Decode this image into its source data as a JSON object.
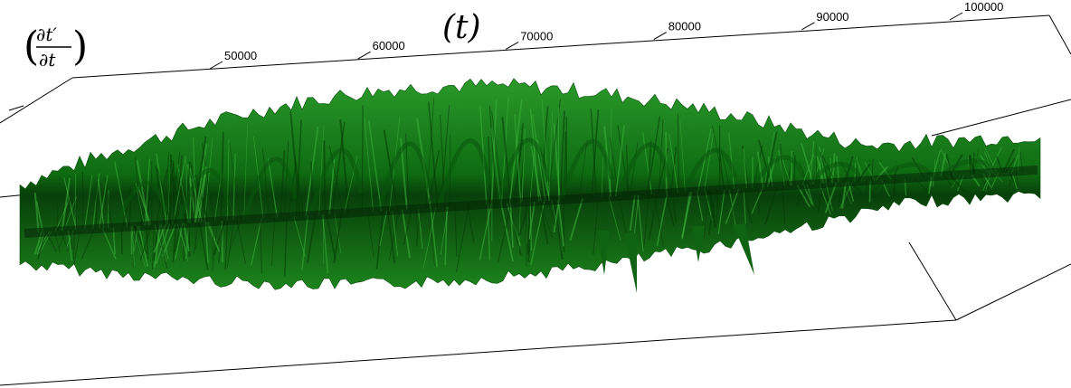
{
  "chart_data": {
    "type": "surface-3d",
    "x_axis": {
      "label": "(t)",
      "ticks": [
        50000,
        60000,
        70000,
        80000,
        90000,
        100000
      ],
      "tick_labels": [
        "50000",
        "60000",
        "70000",
        "80000",
        "90000",
        "100000"
      ]
    },
    "y_axis": {
      "label_numerator": "∂t′",
      "label_denominator": "∂t"
    },
    "surface": {
      "color": "#1f8f1f",
      "style": "green radial spike surface extending along t axis"
    },
    "grid": false
  }
}
